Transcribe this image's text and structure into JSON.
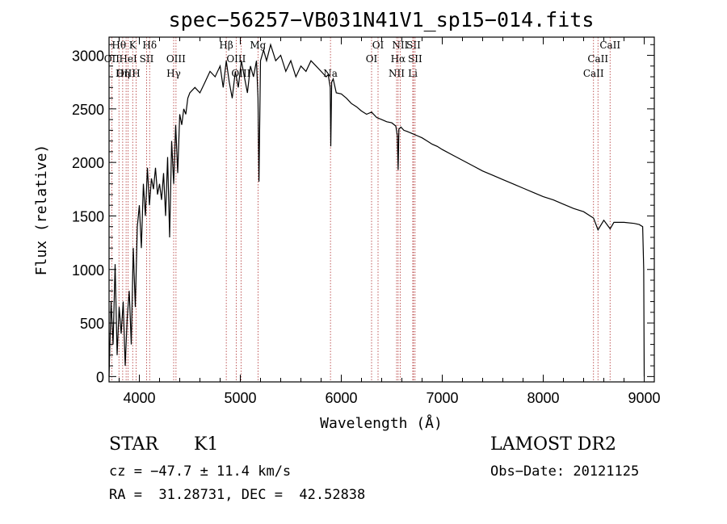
{
  "chart_data": {
    "type": "line",
    "title": "spec−56257−VB031N41V1_sp15−014.fits",
    "xlabel": "Wavelength (Å)",
    "ylabel": "Flux (relative)",
    "xlim": [
      3700,
      9100
    ],
    "ylim": [
      -50,
      3170
    ],
    "xticks": [
      4000,
      5000,
      6000,
      7000,
      8000,
      9000
    ],
    "yticks": [
      0,
      500,
      1000,
      1500,
      2000,
      2500,
      3000
    ],
    "grid": false,
    "series": [
      {
        "x": [
          3700,
          3720,
          3740,
          3760,
          3780,
          3800,
          3820,
          3840,
          3860,
          3880,
          3900,
          3920,
          3940,
          3960,
          3980,
          4000,
          4020,
          4040,
          4060,
          4080,
          4100,
          4120,
          4140,
          4160,
          4180,
          4200,
          4220,
          4240,
          4260,
          4280,
          4300,
          4320,
          4340,
          4360,
          4380,
          4400,
          4420,
          4440,
          4460,
          4480,
          4500,
          4550,
          4600,
          4650,
          4700,
          4750,
          4800,
          4830,
          4861,
          4890,
          4920,
          4950,
          4980,
          5010,
          5040,
          5070,
          5100,
          5130,
          5160,
          5175,
          5185,
          5200,
          5230,
          5260,
          5300,
          5350,
          5400,
          5450,
          5500,
          5550,
          5600,
          5650,
          5700,
          5750,
          5800,
          5850,
          5870,
          5890,
          5896,
          5905,
          5920,
          5950,
          6000,
          6050,
          6100,
          6150,
          6200,
          6250,
          6300,
          6350,
          6400,
          6450,
          6500,
          6540,
          6555,
          6563,
          6570,
          6590,
          6620,
          6650,
          6700,
          6750,
          6800,
          6850,
          6900,
          6950,
          7000,
          7100,
          7200,
          7300,
          7400,
          7500,
          7600,
          7700,
          7800,
          7900,
          8000,
          8100,
          8200,
          8300,
          8400,
          8498,
          8542,
          8600,
          8662,
          8700,
          8800,
          8900,
          8950,
          8985,
          8995,
          9000
        ],
        "y": [
          0,
          700,
          300,
          1050,
          200,
          650,
          400,
          700,
          100,
          550,
          800,
          300,
          1200,
          650,
          1400,
          1600,
          1200,
          1800,
          1500,
          1950,
          1600,
          1850,
          1750,
          1950,
          1700,
          1800,
          1650,
          1900,
          1500,
          2050,
          1300,
          2200,
          1800,
          2350,
          1900,
          2450,
          2350,
          2500,
          2450,
          2600,
          2650,
          2700,
          2650,
          2750,
          2850,
          2800,
          2900,
          2700,
          2950,
          2750,
          2600,
          2850,
          2700,
          2950,
          2800,
          2650,
          2900,
          2800,
          2950,
          2600,
          1820,
          2950,
          3050,
          2950,
          3100,
          2950,
          3000,
          2850,
          2950,
          2800,
          2900,
          2850,
          2950,
          2900,
          2850,
          2800,
          2820,
          2700,
          2150,
          2750,
          2780,
          2650,
          2640,
          2600,
          2550,
          2520,
          2480,
          2450,
          2470,
          2420,
          2400,
          2380,
          2370,
          2340,
          2250,
          1930,
          2310,
          2330,
          2300,
          2290,
          2270,
          2250,
          2230,
          2200,
          2170,
          2150,
          2120,
          2070,
          2020,
          1970,
          1920,
          1880,
          1840,
          1800,
          1760,
          1720,
          1680,
          1650,
          1610,
          1570,
          1540,
          1480,
          1370,
          1460,
          1380,
          1440,
          1440,
          1430,
          1420,
          1400,
          1000,
          0
        ]
      }
    ],
    "lines": [
      {
        "label": "Hθ",
        "wl": 3798,
        "row": 0
      },
      {
        "label": "K",
        "wl": 3934,
        "row": 0
      },
      {
        "label": "Hδ",
        "wl": 4102,
        "row": 0
      },
      {
        "label": "OII",
        "wl": 3727,
        "row": 1
      },
      {
        "label": "HeI",
        "wl": 3889,
        "row": 1
      },
      {
        "label": "SII",
        "wl": 4072,
        "row": 1
      },
      {
        "label": "OIII",
        "wl": 3869,
        "row": 2
      },
      {
        "label": "Hη",
        "wl": 3835,
        "row": 2
      },
      {
        "label": "H",
        "wl": 3968,
        "row": 2
      },
      {
        "label": "OIII",
        "wl": 4363,
        "row": 1
      },
      {
        "label": "Hγ",
        "wl": 4340,
        "row": 2
      },
      {
        "label": "Hβ",
        "wl": 4861,
        "row": 0
      },
      {
        "label": "OIII",
        "wl": 4959,
        "row": 1
      },
      {
        "label": "OIII",
        "wl": 5007,
        "row": 2
      },
      {
        "label": "Mg",
        "wl": 5175,
        "row": 0
      },
      {
        "label": "Na",
        "wl": 5893,
        "row": 2
      },
      {
        "label": "OI",
        "wl": 6364,
        "row": 0
      },
      {
        "label": "OI",
        "wl": 6300,
        "row": 1
      },
      {
        "label": "NII",
        "wl": 6583,
        "row": 0
      },
      {
        "label": "SII",
        "wl": 6716,
        "row": 0
      },
      {
        "label": "Hα",
        "wl": 6563,
        "row": 1
      },
      {
        "label": "SII",
        "wl": 6731,
        "row": 1
      },
      {
        "label": "NII",
        "wl": 6548,
        "row": 2
      },
      {
        "label": "Li",
        "wl": 6708,
        "row": 2
      },
      {
        "label": "CaII",
        "wl": 8662,
        "row": 0
      },
      {
        "label": "CaII",
        "wl": 8542,
        "row": 1
      },
      {
        "label": "CaII",
        "wl": 8498,
        "row": 2
      }
    ]
  },
  "info": {
    "class": "STAR",
    "subclass": "K1",
    "survey": "LAMOST DR2",
    "cz": "cz = −47.7 ± 11.4 km/s",
    "obsdate": "Obs−Date: 20121125",
    "radec": "RA =  31.28731, DEC =  42.52838"
  }
}
